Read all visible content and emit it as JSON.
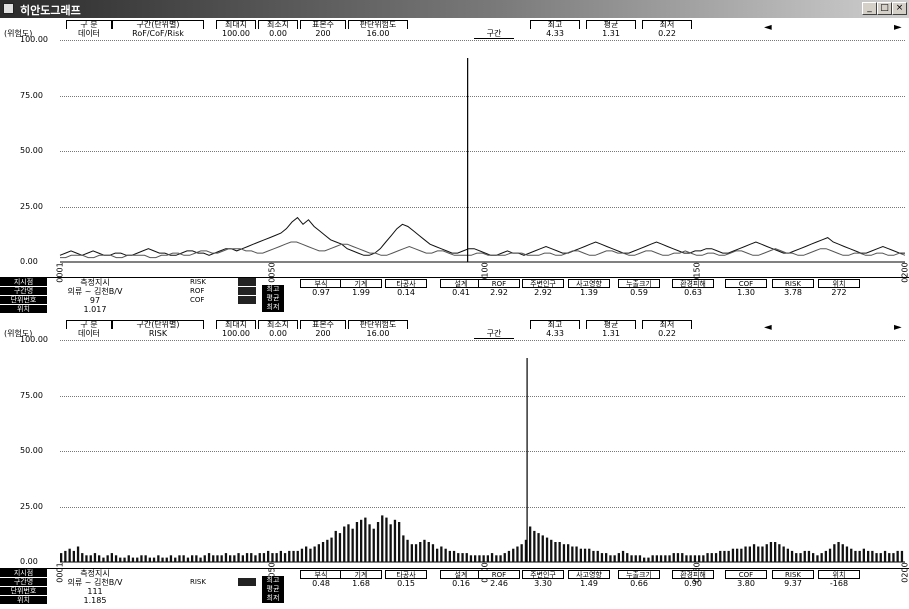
{
  "window": {
    "title": "히안도그래프",
    "buttons": [
      "_",
      "□",
      "×"
    ]
  },
  "panels": [
    {
      "id": "top",
      "unit_label": "(위험도)",
      "header": {
        "gubun_label": "구 분",
        "gubun_value": "데이터",
        "section_label": "구간(단위별)",
        "section_value": "RoF/CoF/Risk",
        "max_label": "최대치",
        "max_value": "100.00",
        "min_label": "최소치",
        "min_value": "0.00",
        "count_label": "표본수",
        "count_value": "200",
        "ref_label": "판단위험도",
        "ref_value": "16.00",
        "cursor_label": "구간",
        "high_label": "최고",
        "high_value": "4.33",
        "avg_label": "평균",
        "avg_value": "1.31",
        "low_label": "최저",
        "low_value": "0.22"
      },
      "y_ticks": [
        "100.00",
        "75.00",
        "50.00",
        "25.00",
        "0.00"
      ],
      "x_ticks": [
        "0001",
        "0050",
        "0100",
        "0150",
        "0200"
      ],
      "info": {
        "left_labels": [
          "지시점",
          "구간명",
          "단위번호",
          "위치"
        ],
        "left_values": [
          "측정지시",
          "의류 ~ 김천B/V",
          "97",
          "1.017"
        ],
        "legend": [
          "RISK",
          "ROF",
          "COF"
        ],
        "side_labels": [
          "최고",
          "평균",
          "최저"
        ],
        "stats": [
          {
            "label": "부식",
            "value": "0.97"
          },
          {
            "label": "기계",
            "value": "1.99"
          },
          {
            "label": "타공사",
            "value": "0.14"
          },
          {
            "label": "설계",
            "value": "0.41"
          },
          {
            "label": "ROF",
            "value": "2.92"
          },
          {
            "label": "주변인구",
            "value": "2.92"
          },
          {
            "label": "사고영향",
            "value": "1.39"
          },
          {
            "label": "누출크기",
            "value": "0.59"
          },
          {
            "label": "환경피해",
            "value": "0.63"
          },
          {
            "label": "COF",
            "value": "1.30"
          },
          {
            "label": "RISK",
            "value": "3.78"
          },
          {
            "label": "위치",
            "value": "272"
          }
        ]
      }
    },
    {
      "id": "bottom",
      "unit_label": "(위험도)",
      "header": {
        "gubun_label": "구 분",
        "gubun_value": "데이터",
        "section_label": "구간(단위별)",
        "section_value": "RISK",
        "max_label": "최대치",
        "max_value": "100.00",
        "min_label": "최소치",
        "min_value": "0.00",
        "count_label": "표본수",
        "count_value": "200",
        "ref_label": "판단위험도",
        "ref_value": "16.00",
        "cursor_label": "구간",
        "high_label": "최고",
        "high_value": "4.33",
        "avg_label": "평균",
        "avg_value": "1.31",
        "low_label": "최저",
        "low_value": "0.22"
      },
      "y_ticks": [
        "100.00",
        "75.00",
        "50.00",
        "25.00",
        "0.00"
      ],
      "x_ticks": [
        "0001",
        "0050",
        "0100",
        "0150",
        "0200"
      ],
      "info": {
        "left_labels": [
          "지시점",
          "구간명",
          "단위번호",
          "위치"
        ],
        "left_values": [
          "측정지시",
          "의류 ~ 김천B/V",
          "111",
          "1.185"
        ],
        "legend": [
          "RISK"
        ],
        "side_labels": [
          "최고",
          "평균",
          "최저"
        ],
        "stats": [
          {
            "label": "부식",
            "value": "0.48"
          },
          {
            "label": "기계",
            "value": "1.68"
          },
          {
            "label": "타공사",
            "value": "0.15"
          },
          {
            "label": "설계",
            "value": "0.16"
          },
          {
            "label": "ROF",
            "value": "2.46"
          },
          {
            "label": "주변인구",
            "value": "3.30"
          },
          {
            "label": "사고영향",
            "value": "1.49"
          },
          {
            "label": "누출크기",
            "value": "0.66"
          },
          {
            "label": "환경피해",
            "value": "0.90"
          },
          {
            "label": "COF",
            "value": "3.80"
          },
          {
            "label": "RISK",
            "value": "9.37"
          },
          {
            "label": "위치",
            "value": "-168"
          }
        ]
      }
    }
  ],
  "chart_data": [
    {
      "type": "line",
      "ylim": [
        0,
        100
      ],
      "x_range": [
        1,
        200
      ],
      "cursor_x": 97,
      "series": [
        {
          "values": [
            3,
            4,
            5,
            4,
            3,
            4,
            5,
            4,
            3,
            3,
            4,
            4,
            3,
            3,
            4,
            5,
            6,
            5,
            4,
            4,
            3,
            3,
            4,
            5,
            5,
            4,
            4,
            3,
            4,
            5,
            6,
            6,
            5,
            6,
            7,
            8,
            9,
            10,
            11,
            12,
            13,
            15,
            18,
            20,
            17,
            19,
            16,
            14,
            12,
            10,
            9,
            8,
            6,
            5,
            4,
            3,
            3,
            4,
            6,
            9,
            12,
            15,
            17,
            16,
            14,
            12,
            10,
            8,
            7,
            6,
            5,
            4,
            4,
            5,
            6,
            6,
            5,
            4,
            3,
            3,
            4,
            5,
            4,
            4,
            3,
            4,
            5,
            6,
            7,
            6,
            5,
            4,
            4,
            5,
            6,
            7,
            8,
            9,
            8,
            7,
            6,
            5,
            4,
            4,
            5,
            6,
            7,
            8,
            9,
            8,
            7,
            6,
            5,
            4,
            4,
            5,
            5,
            6,
            6,
            5,
            4,
            4,
            5,
            6,
            7,
            8,
            9,
            8,
            7,
            6,
            5,
            4,
            4,
            5,
            6,
            7,
            8,
            9,
            10,
            11,
            9,
            8,
            7,
            6,
            5,
            4,
            4,
            5,
            6,
            7,
            6,
            5,
            4,
            4
          ]
        },
        {
          "values": [
            2,
            2,
            3,
            3,
            3,
            2,
            2,
            3,
            3,
            3,
            2,
            2,
            3,
            3,
            3,
            3,
            2,
            2,
            3,
            3,
            4,
            4,
            3,
            3,
            4,
            5,
            5,
            4,
            4,
            5,
            6,
            6,
            6,
            5,
            5,
            4,
            4,
            5,
            6,
            7,
            8,
            9,
            9,
            8,
            7,
            6,
            5,
            5,
            6,
            7,
            8,
            8,
            7,
            6,
            5,
            4,
            4,
            3,
            3,
            4,
            5,
            6,
            7,
            6,
            5,
            4,
            4,
            5,
            5,
            4,
            3,
            3,
            3,
            3,
            4,
            4,
            3,
            3,
            3,
            3,
            4,
            4,
            4,
            3,
            3,
            3,
            4,
            4,
            3,
            3,
            4,
            5,
            5,
            4,
            3,
            3,
            4,
            5,
            5,
            4,
            4,
            3,
            3,
            4,
            5,
            5,
            4,
            3,
            3,
            4,
            4,
            5,
            4,
            3,
            3,
            4,
            4,
            3,
            3,
            4,
            5,
            5,
            4,
            3,
            3,
            4,
            5,
            6,
            5,
            4,
            4,
            3,
            3,
            4,
            5,
            6,
            6,
            5,
            4,
            3,
            3,
            4,
            4,
            3,
            3,
            4,
            4,
            3,
            3,
            4,
            3
          ]
        }
      ]
    },
    {
      "type": "bar",
      "ylim": [
        0,
        100
      ],
      "x_range": [
        1,
        200
      ],
      "cursor_x": 111,
      "values": [
        4,
        5,
        6,
        5,
        7,
        4,
        3,
        3,
        4,
        3,
        2,
        3,
        4,
        3,
        2,
        2,
        3,
        2,
        2,
        3,
        3,
        2,
        2,
        3,
        2,
        2,
        3,
        2,
        3,
        3,
        2,
        3,
        3,
        2,
        3,
        4,
        3,
        3,
        3,
        4,
        3,
        3,
        4,
        3,
        4,
        4,
        3,
        4,
        4,
        5,
        4,
        4,
        5,
        4,
        5,
        5,
        5,
        6,
        7,
        6,
        7,
        8,
        9,
        10,
        11,
        14,
        13,
        16,
        17,
        15,
        18,
        19,
        20,
        17,
        15,
        18,
        21,
        20,
        17,
        19,
        18,
        12,
        10,
        8,
        8,
        9,
        10,
        9,
        8,
        6,
        7,
        6,
        5,
        5,
        4,
        4,
        4,
        3,
        3,
        3,
        3,
        3,
        4,
        3,
        3,
        4,
        5,
        6,
        7,
        8,
        10,
        16,
        14,
        13,
        12,
        11,
        10,
        9,
        9,
        8,
        8,
        7,
        7,
        6,
        6,
        6,
        5,
        5,
        4,
        4,
        3,
        3,
        4,
        5,
        4,
        3,
        3,
        3,
        2,
        2,
        3,
        3,
        3,
        3,
        3,
        4,
        4,
        4,
        3,
        3,
        3,
        3,
        3,
        4,
        4,
        4,
        5,
        5,
        5,
        6,
        6,
        6,
        7,
        7,
        8,
        7,
        7,
        8,
        9,
        9,
        8,
        7,
        6,
        5,
        4,
        4,
        5,
        5,
        4,
        3,
        4,
        5,
        6,
        8,
        9,
        8,
        7,
        6,
        5,
        5,
        6,
        5,
        5,
        4,
        4,
        5,
        4,
        4,
        5,
        5
      ]
    }
  ]
}
